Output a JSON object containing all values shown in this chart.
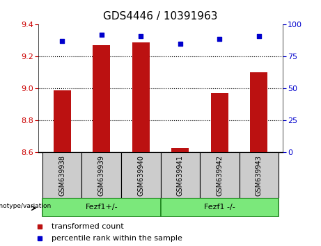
{
  "title": "GDS4446 / 10391963",
  "samples": [
    "GSM639938",
    "GSM639939",
    "GSM639940",
    "GSM639941",
    "GSM639942",
    "GSM639943"
  ],
  "transformed_count": [
    8.99,
    9.27,
    9.29,
    8.63,
    8.97,
    9.1
  ],
  "percentile_rank": [
    87,
    92,
    91,
    85,
    89,
    91
  ],
  "ylim_left": [
    8.6,
    9.4
  ],
  "ylim_right": [
    0,
    100
  ],
  "yticks_left": [
    8.6,
    8.8,
    9.0,
    9.2,
    9.4
  ],
  "yticks_right": [
    0,
    25,
    50,
    75,
    100
  ],
  "bar_color": "#bb1111",
  "dot_color": "#0000cc",
  "bar_width": 0.45,
  "grid_color": "#000000",
  "group1_label": "Fezf1+/-",
  "group2_label": "Fezf1 -/-",
  "group_color": "#7be87b",
  "group_border_color": "#228822",
  "sample_box_color": "#cccccc",
  "group_label_prefix": "genotype/variation",
  "legend_red_label": "transformed count",
  "legend_blue_label": "percentile rank within the sample",
  "bg_color": "#ffffff",
  "plot_bg_color": "#ffffff",
  "tick_label_color_left": "#cc0000",
  "tick_label_color_right": "#0000cc",
  "title_fontsize": 11,
  "axis_fontsize": 8,
  "legend_fontsize": 8,
  "sample_fontsize": 7,
  "group_fontsize": 8
}
